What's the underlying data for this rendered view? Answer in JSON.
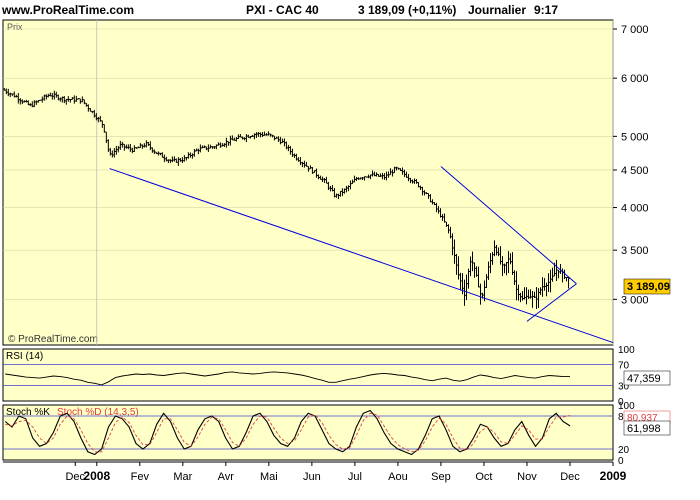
{
  "header": {
    "site": "www.ProRealTime.com",
    "instrument": "PXI - CAC 40",
    "quote": "3 189,09 (+0,11%)",
    "period": "Journalier",
    "time": "9:17"
  },
  "colors": {
    "panel_bg": "#FFFFC8",
    "price_bars": "#000000",
    "trendlines": "#0000DD",
    "last_price_tag": "#FFCC00",
    "rsi_line": "#000000",
    "stoch_k": "#000000",
    "stoch_d": "#E04040"
  },
  "chart_data": [
    {
      "type": "ohlc",
      "panel_label": "Prix",
      "watermark": "© ProRealTime.com",
      "y_scale": "log",
      "ylim": [
        2600,
        7200
      ],
      "y_ticks": [
        7000,
        6000,
        5000,
        4500,
        4000,
        3500,
        3000
      ],
      "y_tick_labels": [
        "7 000",
        "6 000",
        "5 000",
        "4 500",
        "4 000",
        "3 500",
        "3 000"
      ],
      "last_value_label": "3 189,09",
      "last_value": 3189.09,
      "x_labels": [
        "Dec",
        "2008",
        "Fev",
        "Mar",
        "Avr",
        "Mai",
        "Jun",
        "Jul",
        "Aou",
        "Sep",
        "Oct",
        "Nov",
        "Dec",
        "2009"
      ],
      "x_label_months": [
        -0.5,
        0,
        1,
        2,
        3,
        4,
        5,
        6,
        7,
        8,
        9,
        10,
        11,
        12
      ],
      "x_range_months": [
        -2.18,
        12.0
      ],
      "series_close_keypoints": [
        [
          -2.15,
          5780
        ],
        [
          -1.85,
          5650
        ],
        [
          -1.55,
          5500
        ],
        [
          -1.1,
          5700
        ],
        [
          -0.75,
          5620
        ],
        [
          -0.35,
          5600
        ],
        [
          -0.05,
          5350
        ],
        [
          0.15,
          5180
        ],
        [
          0.3,
          4700
        ],
        [
          0.55,
          4860
        ],
        [
          0.85,
          4790
        ],
        [
          1.15,
          4880
        ],
        [
          1.4,
          4740
        ],
        [
          1.75,
          4620
        ],
        [
          2.05,
          4660
        ],
        [
          2.35,
          4800
        ],
        [
          2.7,
          4840
        ],
        [
          3.05,
          4920
        ],
        [
          3.35,
          4980
        ],
        [
          3.7,
          5040
        ],
        [
          4.0,
          5020
        ],
        [
          4.3,
          4920
        ],
        [
          4.6,
          4700
        ],
        [
          4.95,
          4520
        ],
        [
          5.3,
          4340
        ],
        [
          5.55,
          4140
        ],
        [
          5.8,
          4240
        ],
        [
          6.05,
          4390
        ],
        [
          6.35,
          4430
        ],
        [
          6.7,
          4400
        ],
        [
          6.95,
          4520
        ],
        [
          7.2,
          4420
        ],
        [
          7.5,
          4280
        ],
        [
          7.75,
          4100
        ],
        [
          8.0,
          3900
        ],
        [
          8.2,
          3700
        ],
        [
          8.4,
          3250
        ],
        [
          8.55,
          3050
        ],
        [
          8.7,
          3420
        ],
        [
          8.85,
          3180
        ],
        [
          8.95,
          3000
        ],
        [
          9.1,
          3300
        ],
        [
          9.25,
          3550
        ],
        [
          9.45,
          3300
        ],
        [
          9.6,
          3420
        ],
        [
          9.75,
          3100
        ],
        [
          9.9,
          3000
        ],
        [
          10.05,
          3040
        ],
        [
          10.2,
          3000
        ],
        [
          10.35,
          3120
        ],
        [
          10.55,
          3180
        ],
        [
          10.7,
          3300
        ],
        [
          10.85,
          3240
        ],
        [
          10.95,
          3200
        ],
        [
          11.0,
          3189
        ]
      ],
      "trendlines": [
        {
          "from": [
            0.3,
            4520
          ],
          "to": [
            12.0,
            2620
          ]
        },
        {
          "from": [
            8.0,
            4550
          ],
          "to": [
            11.15,
            3150
          ]
        },
        {
          "from": [
            10.0,
            2800
          ],
          "to": [
            11.15,
            3150
          ]
        }
      ],
      "grid": true
    },
    {
      "type": "line",
      "panel_label": "RSI (14)",
      "ylim": [
        0,
        100
      ],
      "y_tick_labels": [
        "100",
        "70",
        "30",
        "0"
      ],
      "y_ticks": [
        100,
        70,
        30,
        0
      ],
      "hlines": [
        70,
        30
      ],
      "last_value_label": "47,359",
      "last_value": 47.359,
      "values": [
        52,
        50,
        48,
        46,
        45,
        44,
        46,
        48,
        47,
        45,
        42,
        40,
        36,
        34,
        31,
        37,
        45,
        48,
        50,
        52,
        51,
        52,
        50,
        49,
        51,
        53,
        54,
        52,
        50,
        48,
        50,
        52,
        55,
        56,
        54,
        53,
        52,
        53,
        55,
        56,
        55,
        54,
        52,
        50,
        47,
        43,
        40,
        36,
        36,
        39,
        42,
        44,
        47,
        50,
        52,
        53,
        52,
        50,
        49,
        46,
        44,
        41,
        39,
        42,
        44,
        40,
        38,
        41,
        46,
        50,
        48,
        45,
        43,
        46,
        49,
        47,
        45,
        44,
        47,
        49,
        48,
        47,
        47
      ]
    },
    {
      "type": "line",
      "panel_label_k": "Stoch %K",
      "panel_label_d": "Stoch %D (14,3,5)",
      "ylim": [
        0,
        100
      ],
      "y_tick_labels": [
        "100",
        "80",
        "20",
        "0"
      ],
      "y_ticks": [
        100,
        80,
        20,
        0
      ],
      "hlines": [
        80,
        20
      ],
      "last_value_label_d": "80,937",
      "last_value_d": 80.937,
      "last_value_label_k": "61,998",
      "last_value_k": 61.998,
      "series": [
        {
          "values": [
            70,
            60,
            80,
            75,
            40,
            25,
            30,
            50,
            80,
            85,
            70,
            40,
            15,
            10,
            20,
            60,
            80,
            75,
            60,
            30,
            20,
            30,
            65,
            85,
            70,
            40,
            20,
            25,
            55,
            75,
            80,
            70,
            40,
            20,
            25,
            50,
            80,
            85,
            70,
            45,
            30,
            25,
            40,
            70,
            85,
            80,
            55,
            30,
            20,
            15,
            25,
            60,
            85,
            90,
            75,
            50,
            30,
            20,
            15,
            10,
            20,
            45,
            75,
            80,
            55,
            25,
            15,
            20,
            40,
            65,
            60,
            40,
            25,
            30,
            55,
            70,
            45,
            25,
            40,
            75,
            85,
            70,
            62
          ]
        },
        {
          "values": [
            65,
            62,
            70,
            72,
            60,
            40,
            30,
            40,
            65,
            80,
            75,
            55,
            30,
            15,
            15,
            40,
            68,
            78,
            68,
            45,
            28,
            28,
            50,
            75,
            75,
            55,
            32,
            25,
            42,
            65,
            78,
            75,
            55,
            32,
            25,
            40,
            65,
            80,
            78,
            58,
            40,
            30,
            35,
            55,
            78,
            82,
            68,
            45,
            28,
            20,
            22,
            45,
            72,
            85,
            82,
            62,
            42,
            28,
            20,
            15,
            18,
            35,
            60,
            76,
            65,
            40,
            22,
            18,
            30,
            52,
            60,
            50,
            33,
            30,
            45,
            62,
            55,
            38,
            38,
            60,
            78,
            78,
            81
          ]
        }
      ]
    }
  ]
}
